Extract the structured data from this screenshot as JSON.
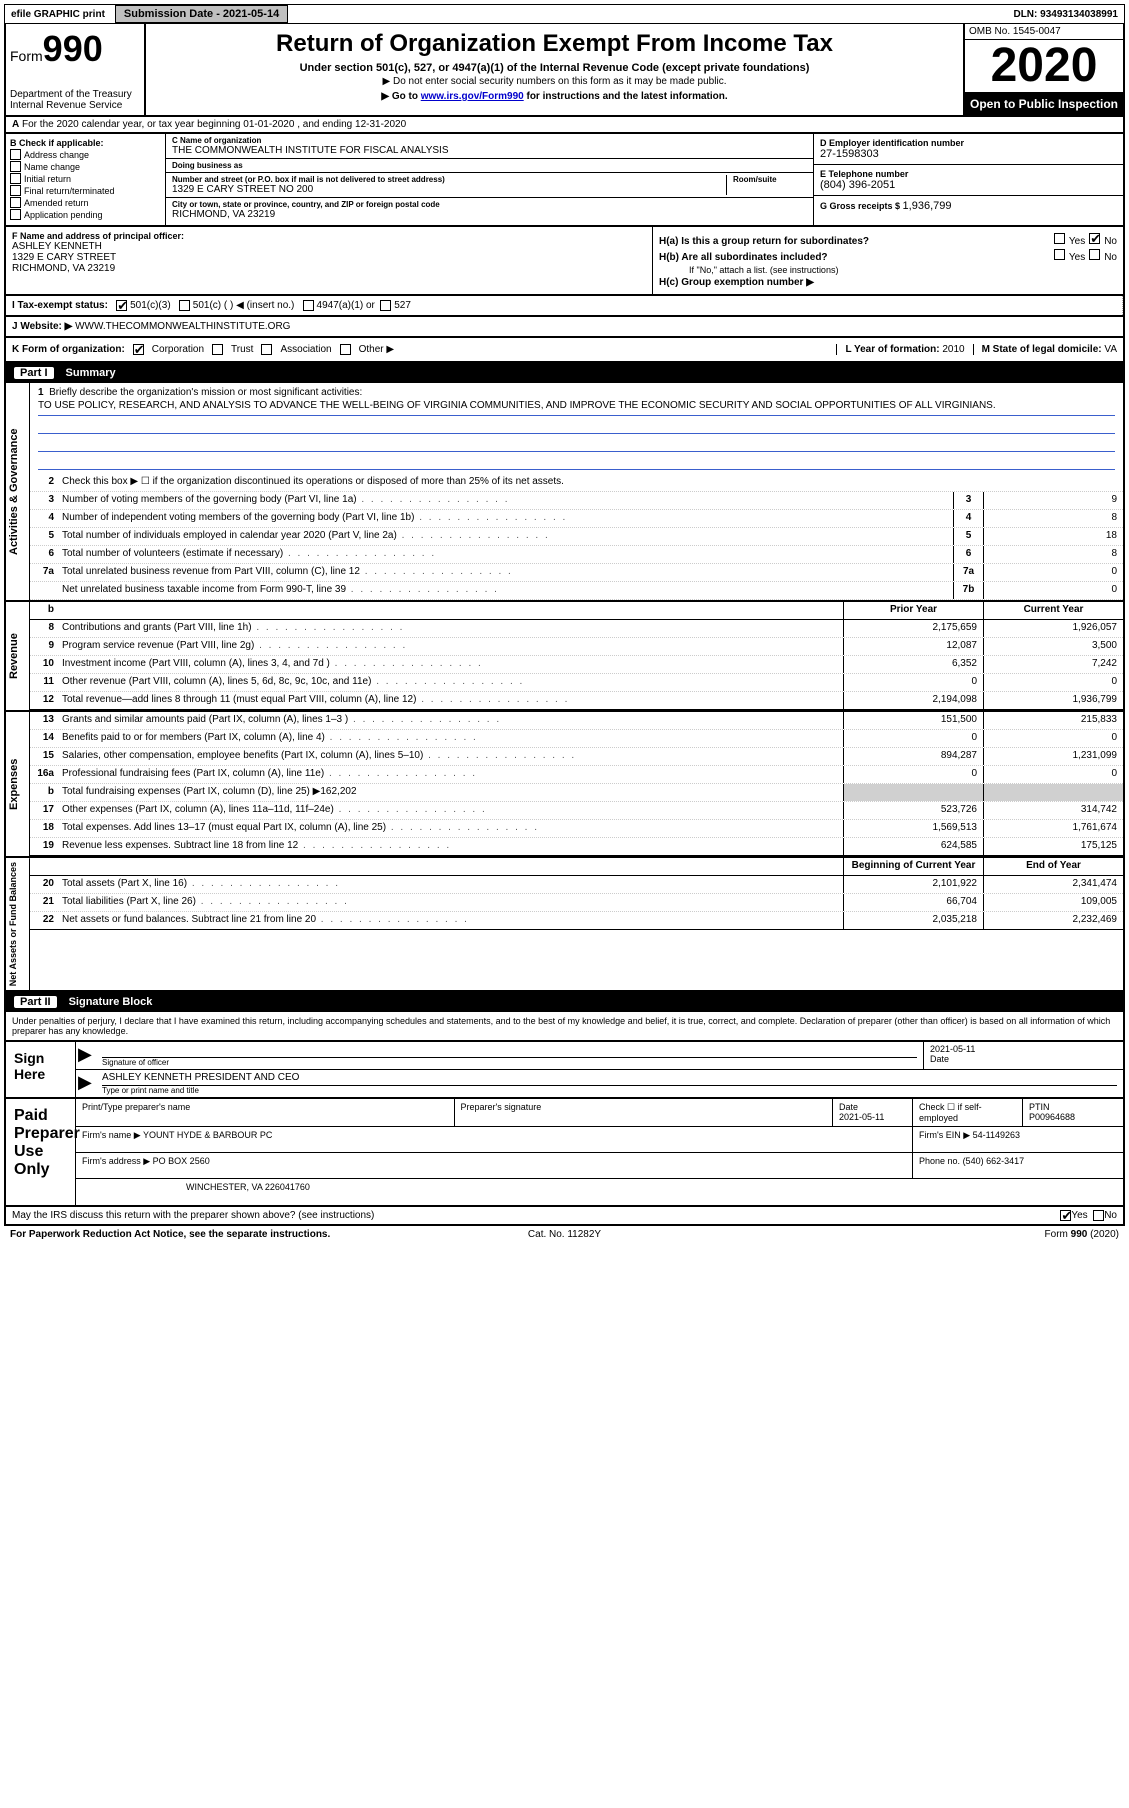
{
  "topbar": {
    "efile": "efile GRAPHIC print",
    "submission": "Submission Date - 2021-05-14",
    "dln": "DLN: 93493134038991"
  },
  "header": {
    "form_label": "Form",
    "form_num": "990",
    "dept": "Department of the Treasury",
    "irs": "Internal Revenue Service",
    "title": "Return of Organization Exempt From Income Tax",
    "sub1": "Under section 501(c), 527, or 4947(a)(1) of the Internal Revenue Code (except private foundations)",
    "sub2": "▶ Do not enter social security numbers on this form as it may be made public.",
    "sub3_pre": "▶ Go to ",
    "sub3_link": "www.irs.gov/Form990",
    "sub3_post": " for instructions and the latest information.",
    "omb": "OMB No. 1545-0047",
    "year": "2020",
    "inspect": "Open to Public Inspection"
  },
  "sectionA": {
    "label": "A",
    "text": "For the 2020 calendar year, or tax year beginning 01-01-2020    , and ending 12-31-2020"
  },
  "checkB": {
    "label": "B Check if applicable:",
    "items": [
      "Address change",
      "Name change",
      "Initial return",
      "Final return/terminated",
      "Amended return",
      "Application pending"
    ]
  },
  "orgC": {
    "name_lbl": "C Name of organization",
    "name": "THE COMMONWEALTH INSTITUTE FOR FISCAL ANALYSIS",
    "dba_lbl": "Doing business as",
    "dba": "",
    "addr_lbl": "Number and street (or P.O. box if mail is not delivered to street address)",
    "room_lbl": "Room/suite",
    "addr": "1329 E CARY STREET NO 200",
    "city_lbl": "City or town, state or province, country, and ZIP or foreign postal code",
    "city": "RICHMOND, VA  23219"
  },
  "right": {
    "d_lbl": "D Employer identification number",
    "d_val": "27-1598303",
    "e_lbl": "E Telephone number",
    "e_val": "(804) 396-2051",
    "g_lbl": "G Gross receipts $ ",
    "g_val": "1,936,799"
  },
  "sectionF": {
    "f_lbl": "F  Name and address of principal officer:",
    "name": "ASHLEY KENNETH",
    "addr1": "1329 E CARY STREET",
    "addr2": "RICHMOND, VA  23219"
  },
  "sectionH": {
    "ha": "H(a)  Is this a group return for subordinates?",
    "hb": "H(b)  Are all subordinates included?",
    "hb_note": "If \"No,\" attach a list. (see instructions)",
    "hc": "H(c)  Group exemption number ▶",
    "yes": "Yes",
    "no": "No"
  },
  "sectionI": {
    "lbl": "I    Tax-exempt status:",
    "o1": "501(c)(3)",
    "o2": "501(c)  (  ) ◀ (insert no.)",
    "o3": "4947(a)(1) or",
    "o4": "527"
  },
  "sectionJ": {
    "lbl": "J    Website: ▶",
    "val": "WWW.THECOMMONWEALTHINSTITUTE.ORG"
  },
  "sectionK": {
    "lbl": "K Form of organization:",
    "o1": "Corporation",
    "o2": "Trust",
    "o3": "Association",
    "o4": "Other ▶",
    "l_lbl": "L Year of formation: ",
    "l_val": "2010",
    "m_lbl": "M State of legal domicile: ",
    "m_val": "VA"
  },
  "part1": {
    "num": "Part I",
    "title": "Summary"
  },
  "mission": {
    "num": "1",
    "lbl": "Briefly describe the organization's mission or most significant activities:",
    "text": "TO USE POLICY, RESEARCH, AND ANALYSIS TO ADVANCE THE WELL-BEING OF VIRGINIA COMMUNITIES, AND IMPROVE THE ECONOMIC SECURITY AND SOCIAL OPPORTUNITIES OF ALL VIRGINIANS."
  },
  "vtabs": {
    "ag": "Activities & Governance",
    "rev": "Revenue",
    "exp": "Expenses",
    "na": "Net Assets or Fund Balances"
  },
  "lines_ag": [
    {
      "n": "2",
      "d": "Check this box ▶ ☐  if the organization discontinued its operations or disposed of more than 25% of its net assets.",
      "single": true
    },
    {
      "n": "3",
      "d": "Number of voting members of the governing body (Part VI, line 1a)",
      "box": "3",
      "v": "9"
    },
    {
      "n": "4",
      "d": "Number of independent voting members of the governing body (Part VI, line 1b)",
      "box": "4",
      "v": "8"
    },
    {
      "n": "5",
      "d": "Total number of individuals employed in calendar year 2020 (Part V, line 2a)",
      "box": "5",
      "v": "18"
    },
    {
      "n": "6",
      "d": "Total number of volunteers (estimate if necessary)",
      "box": "6",
      "v": "8"
    },
    {
      "n": "7a",
      "d": "Total unrelated business revenue from Part VIII, column (C), line 12",
      "box": "7a",
      "v": "0"
    },
    {
      "n": "",
      "d": "Net unrelated business taxable income from Form 990-T, line 39",
      "box": "7b",
      "v": "0"
    }
  ],
  "col_hdr": {
    "py": "Prior Year",
    "cy": "Current Year",
    "boy": "Beginning of Current Year",
    "eoy": "End of Year"
  },
  "lines_rev": [
    {
      "n": "8",
      "d": "Contributions and grants (Part VIII, line 1h)",
      "py": "2,175,659",
      "cy": "1,926,057"
    },
    {
      "n": "9",
      "d": "Program service revenue (Part VIII, line 2g)",
      "py": "12,087",
      "cy": "3,500"
    },
    {
      "n": "10",
      "d": "Investment income (Part VIII, column (A), lines 3, 4, and 7d )",
      "py": "6,352",
      "cy": "7,242"
    },
    {
      "n": "11",
      "d": "Other revenue (Part VIII, column (A), lines 5, 6d, 8c, 9c, 10c, and 11e)",
      "py": "0",
      "cy": "0"
    },
    {
      "n": "12",
      "d": "Total revenue—add lines 8 through 11 (must equal Part VIII, column (A), line 12)",
      "py": "2,194,098",
      "cy": "1,936,799"
    }
  ],
  "lines_exp": [
    {
      "n": "13",
      "d": "Grants and similar amounts paid (Part IX, column (A), lines 1–3 )",
      "py": "151,500",
      "cy": "215,833"
    },
    {
      "n": "14",
      "d": "Benefits paid to or for members (Part IX, column (A), line 4)",
      "py": "0",
      "cy": "0"
    },
    {
      "n": "15",
      "d": "Salaries, other compensation, employee benefits (Part IX, column (A), lines 5–10)",
      "py": "894,287",
      "cy": "1,231,099"
    },
    {
      "n": "16a",
      "d": "Professional fundraising fees (Part IX, column (A), line 11e)",
      "py": "0",
      "cy": "0"
    },
    {
      "n": "b",
      "d": "Total fundraising expenses (Part IX, column (D), line 25) ▶162,202",
      "shade": true
    },
    {
      "n": "17",
      "d": "Other expenses (Part IX, column (A), lines 11a–11d, 11f–24e)",
      "py": "523,726",
      "cy": "314,742"
    },
    {
      "n": "18",
      "d": "Total expenses. Add lines 13–17 (must equal Part IX, column (A), line 25)",
      "py": "1,569,513",
      "cy": "1,761,674"
    },
    {
      "n": "19",
      "d": "Revenue less expenses. Subtract line 18 from line 12",
      "py": "624,585",
      "cy": "175,125"
    }
  ],
  "lines_na": [
    {
      "n": "20",
      "d": "Total assets (Part X, line 16)",
      "py": "2,101,922",
      "cy": "2,341,474"
    },
    {
      "n": "21",
      "d": "Total liabilities (Part X, line 26)",
      "py": "66,704",
      "cy": "109,005"
    },
    {
      "n": "22",
      "d": "Net assets or fund balances. Subtract line 21 from line 20",
      "py": "2,035,218",
      "cy": "2,232,469"
    }
  ],
  "part2": {
    "num": "Part II",
    "title": "Signature Block"
  },
  "sig_text": "Under penalties of perjury, I declare that I have examined this return, including accompanying schedules and statements, and to the best of my knowledge and belief, it is true, correct, and complete. Declaration of preparer (other than officer) is based on all information of which preparer has any knowledge.",
  "sign": {
    "here": "Sign Here",
    "officer_lbl": "Signature of officer",
    "date_lbl": "Date",
    "date": "2021-05-11",
    "name": "ASHLEY KENNETH  PRESIDENT AND CEO",
    "name_lbl": "Type or print name and title"
  },
  "prep": {
    "title": "Paid Preparer Use Only",
    "pname_lbl": "Print/Type preparer's name",
    "psig_lbl": "Preparer's signature",
    "pdate_lbl": "Date",
    "pdate": "2021-05-11",
    "pself_lbl": "Check ☐ if self-employed",
    "ptin_lbl": "PTIN",
    "ptin": "P00964688",
    "firm_lbl": "Firm's name    ▶",
    "firm": "YOUNT HYDE & BARBOUR PC",
    "ein_lbl": "Firm's EIN ▶",
    "ein": "54-1149263",
    "addr_lbl": "Firm's address ▶",
    "addr": "PO BOX 2560",
    "addr2": "WINCHESTER, VA  226041760",
    "phone_lbl": "Phone no.",
    "phone": "(540) 662-3417"
  },
  "discuss": {
    "q": "May the IRS discuss this return with the preparer shown above? (see instructions)",
    "yes": "Yes",
    "no": "No"
  },
  "footer": {
    "left": "For Paperwork Reduction Act Notice, see the separate instructions.",
    "mid": "Cat. No. 11282Y",
    "right": "Form 990 (2020)"
  }
}
